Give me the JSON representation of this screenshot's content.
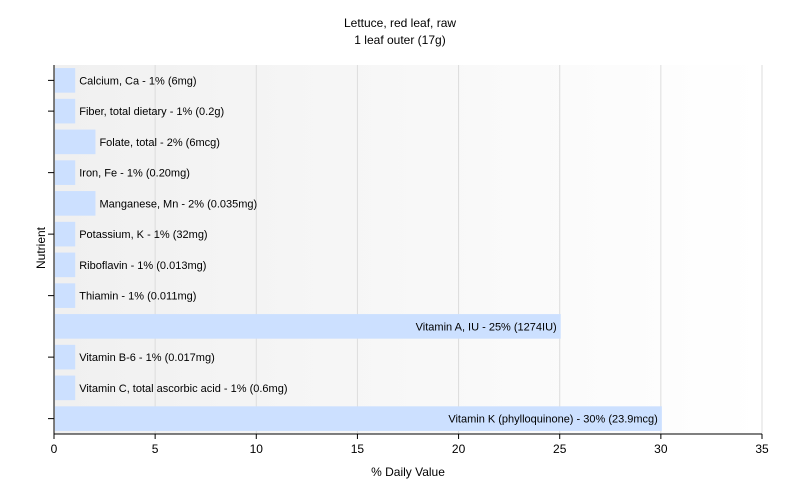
{
  "chart_data": {
    "type": "bar",
    "orientation": "horizontal",
    "title": "Lettuce, red leaf, raw",
    "subtitle": "1 leaf outer (17g)",
    "xlabel": "% Daily Value",
    "ylabel": "Nutrient",
    "xlim": [
      0,
      35
    ],
    "xticks": [
      0,
      5,
      10,
      15,
      20,
      25,
      30,
      35
    ],
    "grid": true,
    "legend": "none",
    "bar_color": "#cce0ff",
    "categories": [
      "Calcium, Ca",
      "Fiber, total dietary",
      "Folate, total",
      "Iron, Fe",
      "Manganese, Mn",
      "Potassium, K",
      "Riboflavin",
      "Thiamin",
      "Vitamin A, IU",
      "Vitamin B-6",
      "Vitamin C, total ascorbic acid",
      "Vitamin K (phylloquinone)"
    ],
    "values": [
      1,
      1,
      2,
      1,
      2,
      1,
      1,
      1,
      25,
      1,
      1,
      30
    ],
    "data_labels": [
      "Calcium, Ca - 1% (6mg)",
      "Fiber, total dietary - 1% (0.2g)",
      "Folate, total - 2% (6mcg)",
      "Iron, Fe - 1% (0.20mg)",
      "Manganese, Mn - 2% (0.035mg)",
      "Potassium, K - 1% (32mg)",
      "Riboflavin - 1% (0.013mg)",
      "Thiamin - 1% (0.011mg)",
      "Vitamin A, IU - 25% (1274IU)",
      "Vitamin B-6 - 1% (0.017mg)",
      "Vitamin C, total ascorbic acid - 1% (0.6mg)",
      "Vitamin K (phylloquinone) - 30% (23.9mcg)"
    ]
  }
}
